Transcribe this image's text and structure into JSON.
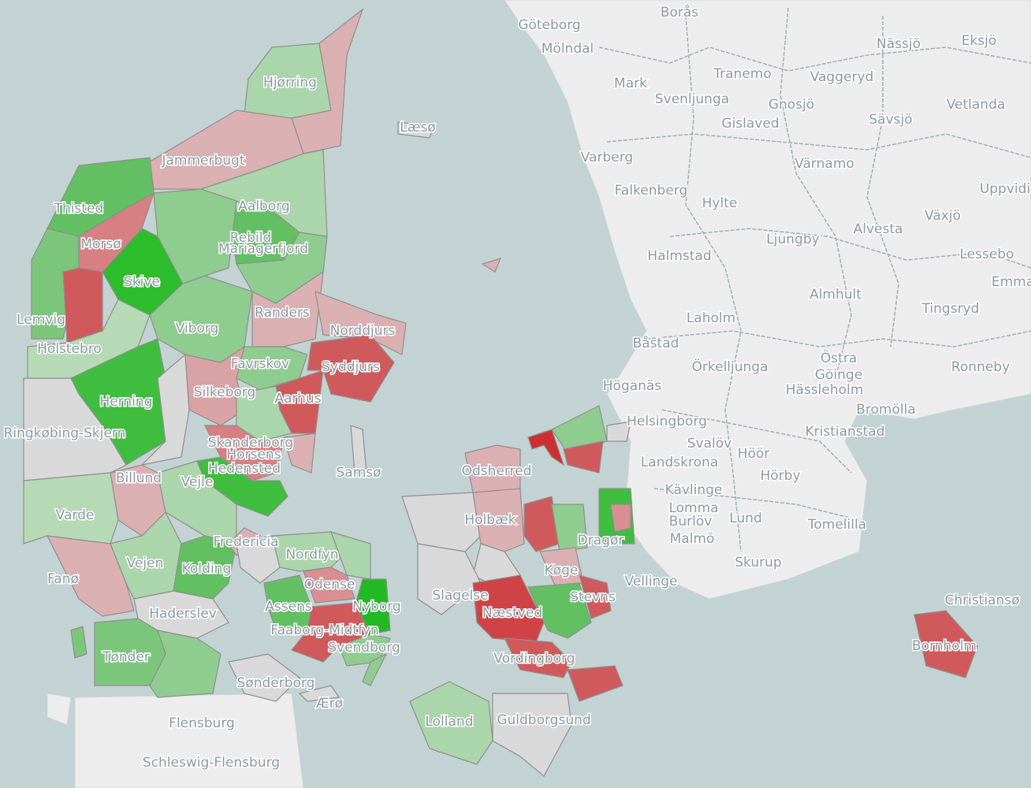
{
  "map": {
    "sweden_labels": [
      "Göteborg",
      "Borås",
      "Mölndal",
      "Nässjö",
      "Eksjö",
      "Mark",
      "Tranemo",
      "Vaggeryd",
      "Svenljunga",
      "Gnosjö",
      "Vetlanda",
      "Gislaved",
      "Sävsjö",
      "Varberg",
      "Värnamo",
      "Falkenberg",
      "Hylte",
      "Uppvidi",
      "Växjö",
      "Ljungby",
      "Alvesta",
      "Halmstad",
      "Lessebo",
      "Emma",
      "Almhult",
      "Tingsryd",
      "Laholm",
      "Båstad",
      "Östra",
      "Göinge",
      "Ronneby",
      "Örkelljunga",
      "Hässleholm",
      "Höganäs",
      "Bromölla",
      "Helsingborg",
      "Kristianstad",
      "Svalöv",
      "Landskrona",
      "Höör",
      "Hörby",
      "Kävlinge",
      "Lomma",
      "Burlöv",
      "Lund",
      "Tomelilla",
      "Malmö",
      "Skurup",
      "Vellinge",
      "Christiansø"
    ],
    "denmark_labels": [
      "Hjørring",
      "Læsø",
      "Jammerbugt",
      "Aalborg",
      "Thisted",
      "Rebild",
      "Morsø",
      "Skive",
      "Mariagerfjord",
      "Lemvig",
      "Viborg",
      "Randers",
      "Norddjurs",
      "Holstebro",
      "Favrskov",
      "Syddjurs",
      "Herning",
      "Silkeborg",
      "Aarhus",
      "Ringkøbing-Skjern",
      "Skanderborg",
      "Horsens",
      "Samsø",
      "Hedensted",
      "Billund",
      "Vejle",
      "Varde",
      "Fredericia",
      "Vejen",
      "Kolding",
      "Fanø",
      "Haderslev",
      "Nordfyn",
      "Odense",
      "Assens",
      "Nyborg",
      "Faaborg-Midtfyn",
      "Svendborg",
      "Tønder",
      "Sønderborg",
      "Ærø",
      "Odsherred",
      "Holbæk",
      "Slagelse",
      "Næstved",
      "Køge",
      "Stevns",
      "Vordingborg",
      "Dragør",
      "Lolland",
      "Guldborgsund",
      "Bornholm"
    ],
    "germany_labels": [
      "Flensburg",
      "Schleswig-Flensburg"
    ]
  }
}
